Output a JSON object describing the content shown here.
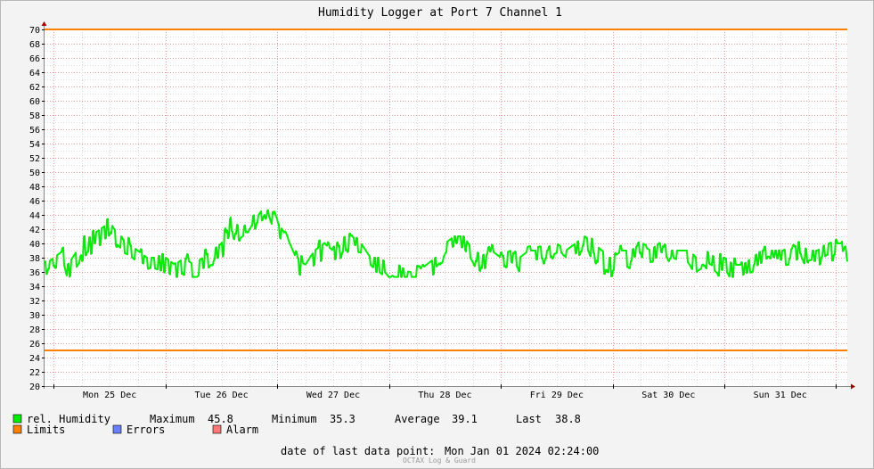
{
  "chart_data": {
    "type": "line",
    "title": "Humidity Logger at Port 7 Channel 1",
    "ylim": [
      20,
      70
    ],
    "y_ticks": [
      20,
      22,
      24,
      26,
      28,
      30,
      32,
      34,
      36,
      38,
      40,
      42,
      44,
      46,
      48,
      50,
      52,
      54,
      56,
      58,
      60,
      62,
      64,
      66,
      68,
      70
    ],
    "x_range": [
      "2023-12-24T22:00",
      "2024-01-01T02:24"
    ],
    "x_tick_labels": [
      "Mon 25 Dec",
      "Tue 26 Dec",
      "Wed 27 Dec",
      "Thu 28 Dec",
      "Fri 29 Dec",
      "Sat 30 Dec",
      "Sun 31 Dec"
    ],
    "x_tick_dates": [
      "2023-12-25T12:00",
      "2023-12-26T12:00",
      "2023-12-27T12:00",
      "2023-12-28T12:00",
      "2023-12-29T12:00",
      "2023-12-30T12:00",
      "2023-12-31T12:00"
    ],
    "limits": {
      "upper": 70,
      "lower": 25
    },
    "grid": true,
    "series": [
      {
        "name": "rel. Humidity",
        "x": [
          "2023-12-24T22:00",
          "2023-12-25T00:00",
          "2023-12-25T02:00",
          "2023-12-25T03:00",
          "2023-12-25T04:00",
          "2023-12-25T06:00",
          "2023-12-25T08:00",
          "2023-12-25T10:00",
          "2023-12-25T12:00",
          "2023-12-25T14:00",
          "2023-12-25T16:00",
          "2023-12-25T18:00",
          "2023-12-25T20:00",
          "2023-12-25T22:00",
          "2023-12-26T00:00",
          "2023-12-26T02:00",
          "2023-12-26T04:00",
          "2023-12-26T06:00",
          "2023-12-26T08:00",
          "2023-12-26T10:00",
          "2023-12-26T12:00",
          "2023-12-26T14:00",
          "2023-12-26T16:00",
          "2023-12-26T18:00",
          "2023-12-26T20:00",
          "2023-12-26T22:00",
          "2023-12-27T00:00",
          "2023-12-27T02:00",
          "2023-12-27T04:00",
          "2023-12-27T06:00",
          "2023-12-27T08:00",
          "2023-12-27T10:00",
          "2023-12-27T12:00",
          "2023-12-27T14:00",
          "2023-12-27T16:00",
          "2023-12-27T18:00",
          "2023-12-27T20:00",
          "2023-12-27T22:00",
          "2023-12-28T00:00",
          "2023-12-28T02:00",
          "2023-12-28T04:00",
          "2023-12-28T06:00",
          "2023-12-28T08:00",
          "2023-12-28T10:00",
          "2023-12-28T12:00",
          "2023-12-28T14:00",
          "2023-12-28T16:00",
          "2023-12-28T18:00",
          "2023-12-28T20:00",
          "2023-12-28T22:00",
          "2023-12-29T00:00",
          "2023-12-29T02:00",
          "2023-12-29T04:00",
          "2023-12-29T06:00",
          "2023-12-29T08:00",
          "2023-12-29T10:00",
          "2023-12-29T12:00",
          "2023-12-29T14:00",
          "2023-12-29T16:00",
          "2023-12-29T18:00",
          "2023-12-29T20:00",
          "2023-12-29T22:00",
          "2023-12-30T00:00",
          "2023-12-30T02:00",
          "2023-12-30T04:00",
          "2023-12-30T06:00",
          "2023-12-30T08:00",
          "2023-12-30T10:00",
          "2023-12-30T12:00",
          "2023-12-30T14:00",
          "2023-12-30T16:00",
          "2023-12-30T18:00",
          "2023-12-30T20:00",
          "2023-12-30T22:00",
          "2023-12-31T00:00",
          "2023-12-31T02:00",
          "2023-12-31T04:00",
          "2023-12-31T06:00",
          "2023-12-31T08:00",
          "2023-12-31T10:00",
          "2023-12-31T12:00",
          "2023-12-31T14:00",
          "2023-12-31T16:00",
          "2023-12-31T18:00",
          "2023-12-31T20:00",
          "2023-12-31T22:00",
          "2024-01-01T00:00",
          "2024-01-01T01:00",
          "2024-01-01T02:00",
          "2024-01-01T02:24"
        ],
        "y": [
          37,
          38,
          39,
          37,
          38,
          40,
          41,
          42,
          43,
          41,
          40,
          39,
          38,
          38,
          38,
          37,
          38,
          37,
          38,
          39,
          40,
          43,
          42,
          43,
          44,
          45.8,
          43,
          41,
          38,
          37,
          39,
          40,
          39,
          40,
          41,
          40,
          38,
          38,
          37,
          37,
          36,
          36,
          37,
          38,
          40,
          41,
          41,
          39,
          38,
          39,
          38,
          39,
          38,
          39,
          39,
          39,
          40,
          39,
          40,
          41,
          40,
          38,
          38,
          39,
          39,
          40,
          39,
          40,
          39,
          39,
          39,
          38,
          39,
          38,
          38,
          37,
          37,
          38,
          39,
          39,
          39,
          39,
          40,
          39,
          39,
          40,
          40,
          40,
          41,
          38.8
        ]
      },
      {
        "name": "Limits",
        "values": [
          70,
          25
        ]
      }
    ],
    "colors": {
      "humidity": "#00ee00",
      "limits": "#ff7f00",
      "errors": "#6a7fff",
      "alarm": "#ff7777"
    }
  },
  "legend": {
    "humidity_label": "rel. Humidity",
    "maximum_label": "Maximum",
    "maximum_value": "45.8",
    "minimum_label": "Minimum",
    "minimum_value": "35.3",
    "average_label": "Average",
    "average_value": "39.1",
    "last_label": "Last",
    "last_value": "38.8",
    "limits_label": "Limits",
    "errors_label": "Errors",
    "alarm_label": "Alarm"
  },
  "footer": {
    "last_point_label": "date of last data point:",
    "last_point_value": "Mon Jan 01 2024 02:24:00",
    "watermark": "OCTAX Log & Guard"
  }
}
